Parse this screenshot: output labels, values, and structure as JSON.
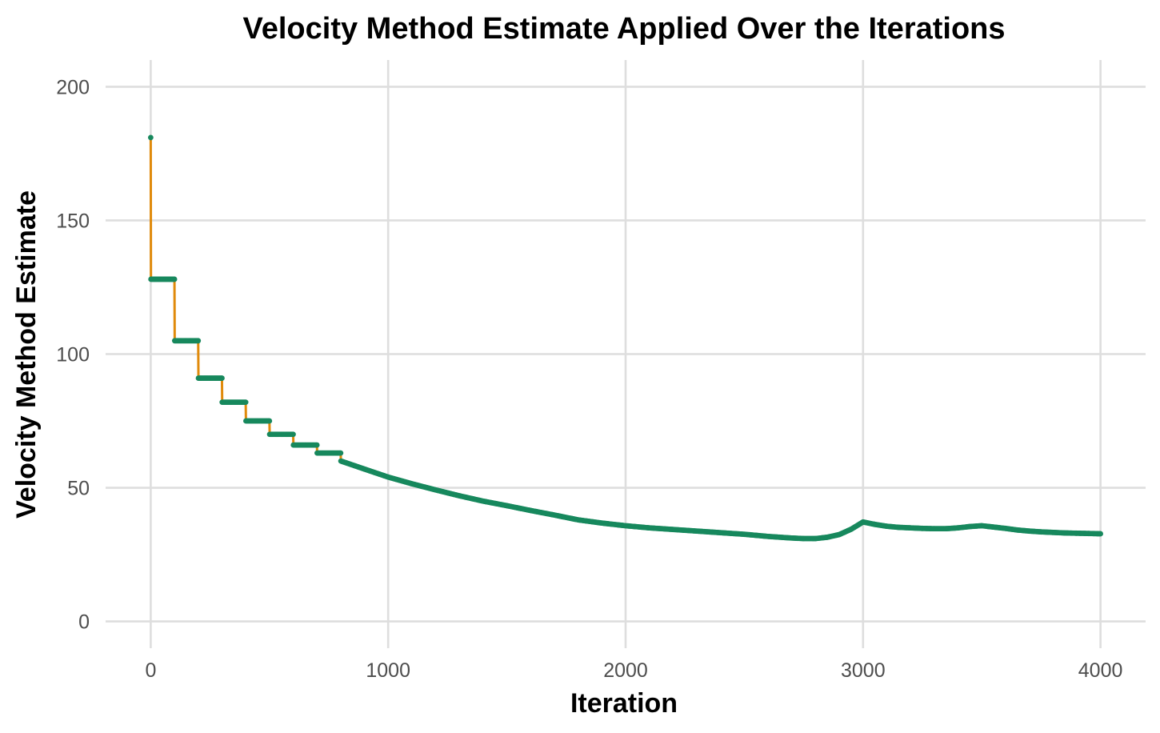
{
  "chart_data": {
    "type": "line",
    "title": "Velocity Method Estimate Applied Over the Iterations",
    "xlabel": "Iteration",
    "ylabel": "Velocity Method Estimate",
    "xlim": [
      -190,
      4190
    ],
    "ylim": [
      -10,
      210
    ],
    "x_ticks": [
      0,
      1000,
      2000,
      3000,
      4000
    ],
    "x_tick_labels": [
      "0",
      "1000",
      "2000",
      "3000",
      "4000"
    ],
    "y_ticks": [
      0,
      50,
      100,
      150,
      200
    ],
    "y_tick_labels": [
      "0",
      "50",
      "100",
      "150",
      "200"
    ],
    "grid": true,
    "legend": "none",
    "colors": {
      "line": "#e08a0b",
      "points": "#17885d"
    },
    "series": [
      {
        "style": "line-and-points",
        "x": [
          0,
          1,
          100,
          101,
          200,
          201,
          300,
          301,
          400,
          401,
          500,
          501,
          600,
          601,
          700,
          701,
          800,
          801,
          900,
          1000,
          1100,
          1200,
          1300,
          1400,
          1500,
          1600,
          1700,
          1800,
          1900,
          2000,
          2100,
          2200,
          2300,
          2400,
          2500,
          2600,
          2700,
          2750,
          2800,
          2850,
          2900,
          2950,
          3000,
          3050,
          3100,
          3150,
          3200,
          3250,
          3300,
          3350,
          3400,
          3450,
          3500,
          3550,
          3600,
          3650,
          3700,
          3750,
          3800,
          3850,
          3900,
          3950,
          4000
        ],
        "y": [
          181,
          128,
          128,
          105,
          105,
          91,
          91,
          82,
          82,
          75,
          75,
          70,
          70,
          66,
          66,
          63,
          63,
          60,
          57,
          54,
          51.5,
          49.2,
          47,
          45,
          43.3,
          41.5,
          39.8,
          38,
          36.8,
          35.8,
          35,
          34.4,
          33.8,
          33.2,
          32.6,
          31.8,
          31.2,
          31,
          31,
          31.5,
          32.5,
          34.5,
          37.2,
          36.3,
          35.6,
          35.2,
          35,
          34.8,
          34.7,
          34.7,
          35,
          35.5,
          35.8,
          35.3,
          34.8,
          34.2,
          33.8,
          33.5,
          33.3,
          33.1,
          33,
          32.9,
          32.8
        ]
      }
    ]
  }
}
